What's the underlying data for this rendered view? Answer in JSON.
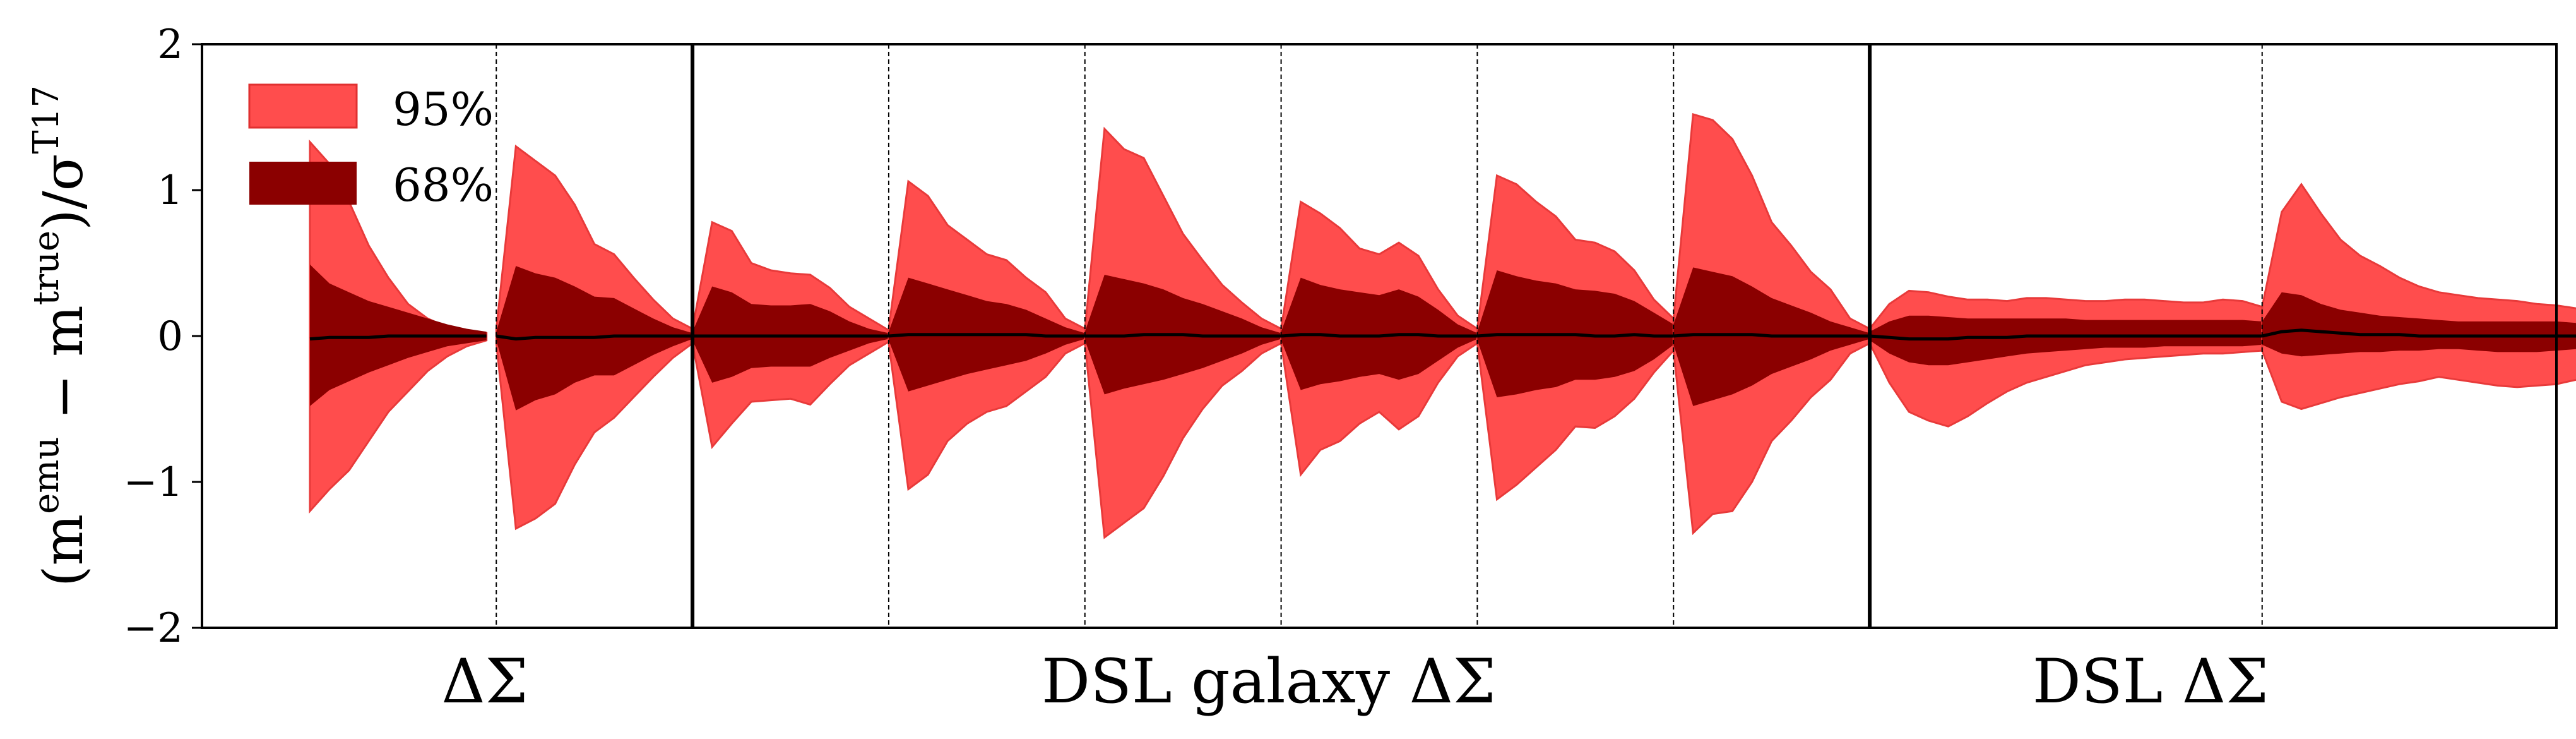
{
  "chart_data": {
    "type": "area",
    "ylabel": {
      "open": "(m",
      "sup_emu": "emu",
      "minus": " − m",
      "sup_true": "true",
      "close": ")/σ",
      "sup_t17": "T17"
    },
    "ylim": [
      -2,
      2
    ],
    "yticks": [
      -2,
      -1,
      0,
      1,
      2
    ],
    "ytick_labels": [
      "−2",
      "−1",
      "0",
      "1",
      "2"
    ],
    "xlim": [
      0,
      12
    ],
    "group_labels": [
      {
        "text": "ΔΣ",
        "x": 1.5
      },
      {
        "text": "DSL galaxy ΔΣ",
        "x": 5.5
      },
      {
        "text": "DSL ΔΣ",
        "x": 10.5
      }
    ],
    "major_dividers": [
      2.5,
      8.5
    ],
    "minor_dividers": [
      1.5,
      3.5,
      4.5,
      5.5,
      6.5,
      7.5,
      10.5
    ],
    "series": [
      {
        "name": "95%",
        "color": "#ff4d4d",
        "upper_key": "u95",
        "lower_key": "l95"
      },
      {
        "name": "68%",
        "color": "#8b0000",
        "upper_key": "u68",
        "lower_key": "l68"
      }
    ],
    "median_color": "#000000",
    "segments": [
      {
        "x": [
          0.55,
          0.65,
          0.75,
          0.85,
          0.95,
          1.05,
          1.15,
          1.25,
          1.35,
          1.45
        ],
        "u95": [
          1.33,
          1.18,
          0.92,
          0.62,
          0.4,
          0.22,
          0.12,
          0.06,
          0.03,
          0.02
        ],
        "l95": [
          -1.2,
          -1.05,
          -0.92,
          -0.72,
          -0.52,
          -0.38,
          -0.24,
          -0.14,
          -0.07,
          -0.03
        ],
        "u68": [
          0.49,
          0.36,
          0.3,
          0.24,
          0.2,
          0.16,
          0.12,
          0.08,
          0.05,
          0.03
        ],
        "l68": [
          -0.48,
          -0.37,
          -0.31,
          -0.25,
          -0.2,
          -0.15,
          -0.11,
          -0.07,
          -0.05,
          -0.03
        ],
        "med": [
          -0.02,
          -0.01,
          -0.01,
          -0.01,
          0.0,
          0.0,
          0.0,
          0.0,
          0.0,
          0.0
        ]
      },
      {
        "x": [
          1.5,
          1.6,
          1.7,
          1.8,
          1.9,
          2.0,
          2.1,
          2.2,
          2.3,
          2.4,
          2.5
        ],
        "u95": [
          0.05,
          1.3,
          1.2,
          1.1,
          0.9,
          0.63,
          0.56,
          0.4,
          0.25,
          0.12,
          0.05
        ],
        "l95": [
          -0.05,
          -1.32,
          -1.25,
          -1.15,
          -0.88,
          -0.66,
          -0.56,
          -0.42,
          -0.28,
          -0.15,
          -0.05
        ],
        "u68": [
          0.03,
          0.48,
          0.43,
          0.4,
          0.34,
          0.27,
          0.26,
          0.19,
          0.12,
          0.06,
          0.02
        ],
        "l68": [
          -0.03,
          -0.51,
          -0.44,
          -0.4,
          -0.32,
          -0.27,
          -0.27,
          -0.2,
          -0.13,
          -0.07,
          -0.02
        ],
        "med": [
          0.0,
          -0.02,
          -0.01,
          -0.01,
          -0.01,
          -0.01,
          0.0,
          0.0,
          0.0,
          0.0,
          0.0
        ]
      },
      {
        "x": [
          2.5,
          2.6,
          2.7,
          2.8,
          2.9,
          3.0,
          3.1,
          3.2,
          3.3,
          3.4,
          3.5
        ],
        "u95": [
          0.05,
          0.78,
          0.72,
          0.5,
          0.45,
          0.43,
          0.42,
          0.33,
          0.2,
          0.12,
          0.04
        ],
        "l95": [
          -0.05,
          -0.76,
          -0.6,
          -0.45,
          -0.44,
          -0.43,
          -0.47,
          -0.33,
          -0.2,
          -0.12,
          -0.04
        ],
        "u68": [
          0.03,
          0.34,
          0.3,
          0.22,
          0.21,
          0.21,
          0.22,
          0.17,
          0.1,
          0.05,
          0.02
        ],
        "l68": [
          -0.03,
          -0.32,
          -0.28,
          -0.22,
          -0.21,
          -0.21,
          -0.21,
          -0.15,
          -0.1,
          -0.05,
          -0.02
        ],
        "med": [
          0.0,
          0.0,
          0.0,
          0.0,
          0.0,
          0.0,
          0.0,
          0.0,
          0.0,
          0.0,
          0.0
        ]
      },
      {
        "x": [
          3.5,
          3.6,
          3.7,
          3.8,
          3.9,
          4.0,
          4.1,
          4.2,
          4.3,
          4.4,
          4.5
        ],
        "u95": [
          0.05,
          1.06,
          0.96,
          0.76,
          0.66,
          0.56,
          0.52,
          0.4,
          0.3,
          0.12,
          0.05
        ],
        "l95": [
          -0.05,
          -1.05,
          -0.95,
          -0.72,
          -0.6,
          -0.52,
          -0.48,
          -0.38,
          -0.28,
          -0.12,
          -0.05
        ],
        "u68": [
          0.03,
          0.4,
          0.36,
          0.32,
          0.28,
          0.24,
          0.22,
          0.18,
          0.12,
          0.06,
          0.02
        ],
        "l68": [
          -0.03,
          -0.38,
          -0.34,
          -0.3,
          -0.26,
          -0.23,
          -0.2,
          -0.17,
          -0.12,
          -0.06,
          -0.02
        ],
        "med": [
          0.0,
          0.01,
          0.01,
          0.01,
          0.01,
          0.01,
          0.01,
          0.01,
          0.0,
          0.0,
          0.0
        ]
      },
      {
        "x": [
          4.5,
          4.6,
          4.7,
          4.8,
          4.9,
          5.0,
          5.1,
          5.2,
          5.3,
          5.4,
          5.5
        ],
        "u95": [
          0.05,
          1.42,
          1.28,
          1.22,
          0.96,
          0.7,
          0.52,
          0.35,
          0.23,
          0.12,
          0.05
        ],
        "l95": [
          -0.05,
          -1.38,
          -1.28,
          -1.18,
          -0.96,
          -0.7,
          -0.5,
          -0.34,
          -0.24,
          -0.12,
          -0.05
        ],
        "u68": [
          0.03,
          0.42,
          0.39,
          0.36,
          0.32,
          0.26,
          0.22,
          0.17,
          0.12,
          0.06,
          0.02
        ],
        "l68": [
          -0.03,
          -0.4,
          -0.36,
          -0.33,
          -0.3,
          -0.26,
          -0.22,
          -0.17,
          -0.12,
          -0.06,
          -0.02
        ],
        "med": [
          0.0,
          0.0,
          0.0,
          0.01,
          0.01,
          0.01,
          0.0,
          0.0,
          0.0,
          0.0,
          0.0
        ]
      },
      {
        "x": [
          5.5,
          5.6,
          5.7,
          5.8,
          5.9,
          6.0,
          6.1,
          6.2,
          6.3,
          6.4,
          6.5
        ],
        "u95": [
          0.05,
          0.92,
          0.84,
          0.74,
          0.6,
          0.56,
          0.64,
          0.55,
          0.32,
          0.14,
          0.05
        ],
        "l95": [
          -0.05,
          -0.95,
          -0.78,
          -0.72,
          -0.6,
          -0.52,
          -0.64,
          -0.55,
          -0.32,
          -0.14,
          -0.05
        ],
        "u68": [
          0.03,
          0.4,
          0.35,
          0.32,
          0.3,
          0.28,
          0.32,
          0.27,
          0.18,
          0.08,
          0.02
        ],
        "l68": [
          -0.03,
          -0.37,
          -0.33,
          -0.31,
          -0.28,
          -0.26,
          -0.3,
          -0.26,
          -0.17,
          -0.08,
          -0.02
        ],
        "med": [
          0.0,
          0.01,
          0.01,
          0.0,
          0.0,
          0.0,
          0.01,
          0.01,
          0.0,
          0.0,
          0.0
        ]
      },
      {
        "x": [
          6.5,
          6.6,
          6.7,
          6.8,
          6.9,
          7.0,
          7.1,
          7.2,
          7.3,
          7.4,
          7.5
        ],
        "u95": [
          0.05,
          1.1,
          1.04,
          0.92,
          0.82,
          0.66,
          0.64,
          0.58,
          0.45,
          0.25,
          0.12
        ],
        "l95": [
          -0.05,
          -1.12,
          -1.02,
          -0.9,
          -0.78,
          -0.62,
          -0.63,
          -0.55,
          -0.43,
          -0.25,
          -0.1
        ],
        "u68": [
          0.03,
          0.45,
          0.41,
          0.38,
          0.36,
          0.32,
          0.31,
          0.29,
          0.24,
          0.16,
          0.08
        ],
        "l68": [
          -0.03,
          -0.42,
          -0.4,
          -0.37,
          -0.35,
          -0.3,
          -0.3,
          -0.28,
          -0.24,
          -0.16,
          -0.06
        ],
        "med": [
          0.0,
          0.01,
          0.01,
          0.01,
          0.01,
          0.01,
          0.0,
          0.0,
          0.01,
          0.0,
          0.0
        ]
      },
      {
        "x": [
          7.5,
          7.6,
          7.7,
          7.8,
          7.9,
          8.0,
          8.1,
          8.2,
          8.3,
          8.4,
          8.5
        ],
        "u95": [
          0.12,
          1.52,
          1.48,
          1.35,
          1.1,
          0.78,
          0.62,
          0.44,
          0.32,
          0.12,
          0.05
        ],
        "l95": [
          -0.1,
          -1.35,
          -1.22,
          -1.2,
          -1.0,
          -0.72,
          -0.58,
          -0.42,
          -0.3,
          -0.12,
          -0.05
        ],
        "u68": [
          0.08,
          0.47,
          0.44,
          0.41,
          0.34,
          0.26,
          0.21,
          0.16,
          0.1,
          0.06,
          0.02
        ],
        "l68": [
          -0.06,
          -0.48,
          -0.44,
          -0.4,
          -0.34,
          -0.26,
          -0.21,
          -0.16,
          -0.1,
          -0.06,
          -0.02
        ],
        "med": [
          0.0,
          0.01,
          0.01,
          0.01,
          0.01,
          0.0,
          0.0,
          0.0,
          0.0,
          0.0,
          0.0
        ]
      },
      {
        "x": [
          8.5,
          8.6,
          8.7,
          8.8,
          8.9,
          9.0,
          9.1,
          9.2,
          9.3,
          9.4,
          9.5,
          9.6,
          9.7,
          9.8,
          9.9,
          10.0,
          10.1,
          10.2,
          10.3,
          10.4,
          10.5
        ],
        "u95": [
          0.05,
          0.22,
          0.31,
          0.3,
          0.27,
          0.25,
          0.25,
          0.24,
          0.26,
          0.26,
          0.25,
          0.24,
          0.24,
          0.25,
          0.25,
          0.24,
          0.23,
          0.23,
          0.25,
          0.24,
          0.2
        ],
        "l95": [
          -0.05,
          -0.32,
          -0.52,
          -0.58,
          -0.62,
          -0.55,
          -0.46,
          -0.38,
          -0.32,
          -0.28,
          -0.24,
          -0.2,
          -0.18,
          -0.16,
          -0.15,
          -0.14,
          -0.13,
          -0.12,
          -0.12,
          -0.11,
          -0.1
        ],
        "u68": [
          0.03,
          0.1,
          0.14,
          0.14,
          0.13,
          0.12,
          0.12,
          0.12,
          0.12,
          0.12,
          0.12,
          0.11,
          0.11,
          0.11,
          0.11,
          0.11,
          0.11,
          0.11,
          0.11,
          0.11,
          0.1
        ],
        "l68": [
          -0.03,
          -0.12,
          -0.18,
          -0.2,
          -0.2,
          -0.18,
          -0.16,
          -0.14,
          -0.12,
          -0.11,
          -0.1,
          -0.09,
          -0.08,
          -0.08,
          -0.08,
          -0.07,
          -0.07,
          -0.07,
          -0.07,
          -0.07,
          -0.06
        ],
        "med": [
          0.0,
          -0.01,
          -0.02,
          -0.02,
          -0.02,
          -0.01,
          -0.01,
          -0.01,
          0.0,
          0.0,
          0.0,
          0.0,
          0.0,
          0.0,
          0.0,
          0.0,
          0.0,
          0.0,
          0.0,
          0.0,
          0.0
        ],
        "xstep": 0.1
      },
      {
        "x": [
          10.5,
          10.6,
          10.7,
          10.8,
          10.9,
          11.0,
          11.1,
          11.2,
          11.3,
          11.4,
          11.5,
          11.6,
          11.7,
          11.8,
          11.9,
          12.0,
          12.1,
          12.2,
          12.3,
          12.4,
          12.5
        ],
        "u95": [
          0.2,
          0.85,
          1.04,
          0.84,
          0.66,
          0.55,
          0.48,
          0.4,
          0.34,
          0.3,
          0.28,
          0.26,
          0.25,
          0.24,
          0.22,
          0.21,
          0.19,
          0.18,
          0.16,
          0.15,
          0.14
        ],
        "l95": [
          -0.1,
          -0.45,
          -0.5,
          -0.46,
          -0.42,
          -0.39,
          -0.36,
          -0.33,
          -0.31,
          -0.28,
          -0.3,
          -0.32,
          -0.34,
          -0.35,
          -0.34,
          -0.33,
          -0.3,
          -0.26,
          -0.22,
          -0.2,
          -0.19
        ],
        "u68": [
          0.1,
          0.3,
          0.28,
          0.22,
          0.18,
          0.16,
          0.14,
          0.13,
          0.12,
          0.11,
          0.1,
          0.1,
          0.1,
          0.1,
          0.1,
          0.1,
          0.09,
          0.09,
          0.08,
          0.08,
          0.08
        ],
        "l68": [
          -0.06,
          -0.12,
          -0.14,
          -0.13,
          -0.12,
          -0.11,
          -0.11,
          -0.1,
          -0.1,
          -0.09,
          -0.09,
          -0.1,
          -0.11,
          -0.11,
          -0.11,
          -0.1,
          -0.09,
          -0.08,
          -0.07,
          -0.07,
          -0.06
        ],
        "med": [
          0.0,
          0.03,
          0.04,
          0.03,
          0.02,
          0.01,
          0.01,
          0.01,
          0.0,
          0.0,
          0.0,
          0.0,
          0.0,
          0.0,
          0.0,
          0.0,
          0.0,
          0.0,
          0.0,
          0.0,
          0.0
        ]
      }
    ]
  }
}
